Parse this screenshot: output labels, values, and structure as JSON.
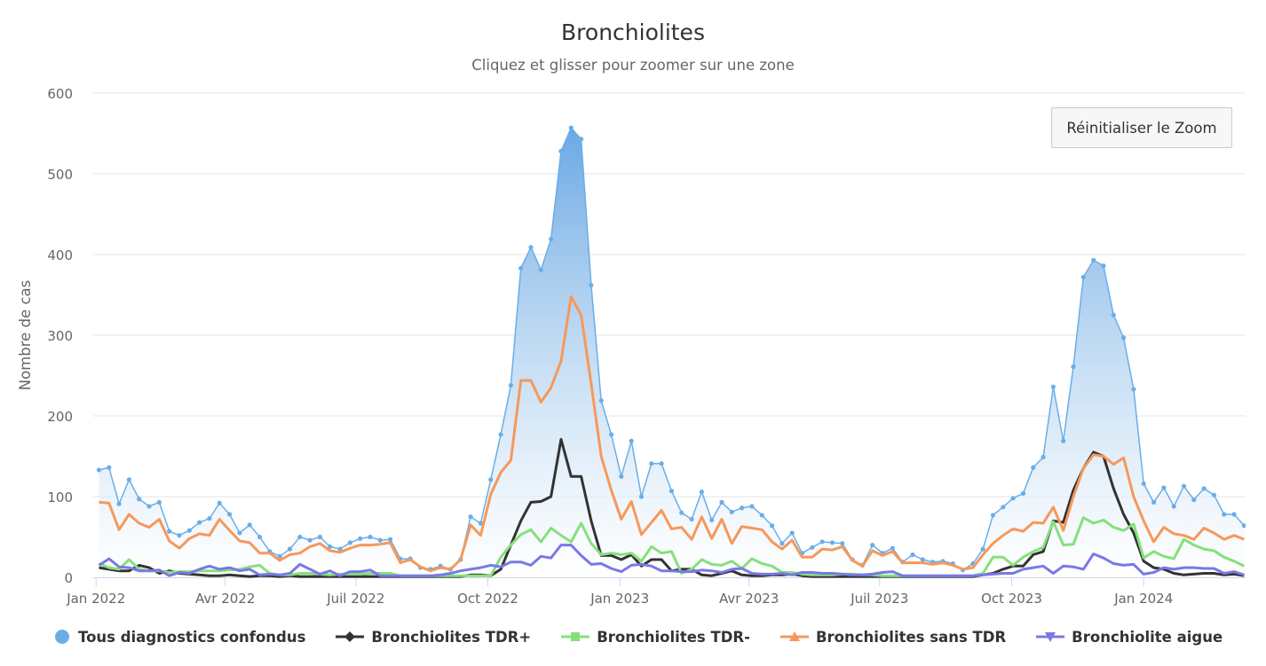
{
  "chart_data": {
    "type": "line",
    "title": "Bronchiolites",
    "subtitle": "Cliquez et glisser pour zoomer sur une zone",
    "ylabel": "Nombre de cas",
    "xlabel": "",
    "ylim": [
      0,
      600
    ],
    "yticks": [
      0,
      100,
      200,
      300,
      400,
      500,
      600
    ],
    "xlim": [
      "2021-12-30",
      "2024-03-12"
    ],
    "xticks": [
      {
        "date": "2022-01-01",
        "label": "Jan 2022"
      },
      {
        "date": "2022-04-01",
        "label": "Avr 2022"
      },
      {
        "date": "2022-07-01",
        "label": "Juil 2022"
      },
      {
        "date": "2022-10-01",
        "label": "Oct 2022"
      },
      {
        "date": "2023-01-01",
        "label": "Jan 2023"
      },
      {
        "date": "2023-04-01",
        "label": "Avr 2023"
      },
      {
        "date": "2023-07-01",
        "label": "Juil 2023"
      },
      {
        "date": "2023-10-01",
        "label": "Oct 2023"
      },
      {
        "date": "2024-01-01",
        "label": "Jan 2024"
      }
    ],
    "grid": true,
    "legend_position": "bottom",
    "x": [
      "2022-01-03",
      "2022-01-10",
      "2022-01-17",
      "2022-01-24",
      "2022-01-31",
      "2022-02-07",
      "2022-02-14",
      "2022-02-21",
      "2022-02-28",
      "2022-03-07",
      "2022-03-14",
      "2022-03-21",
      "2022-03-28",
      "2022-04-04",
      "2022-04-11",
      "2022-04-18",
      "2022-04-25",
      "2022-05-02",
      "2022-05-09",
      "2022-05-16",
      "2022-05-23",
      "2022-05-30",
      "2022-06-06",
      "2022-06-13",
      "2022-06-20",
      "2022-06-27",
      "2022-07-04",
      "2022-07-11",
      "2022-07-18",
      "2022-07-25",
      "2022-08-01",
      "2022-08-08",
      "2022-08-15",
      "2022-08-22",
      "2022-08-29",
      "2022-09-05",
      "2022-09-12",
      "2022-09-19",
      "2022-09-26",
      "2022-10-03",
      "2022-10-10",
      "2022-10-17",
      "2022-10-24",
      "2022-10-31",
      "2022-11-07",
      "2022-11-14",
      "2022-11-21",
      "2022-11-28",
      "2022-12-05",
      "2022-12-12",
      "2022-12-19",
      "2022-12-26",
      "2023-01-02",
      "2023-01-09",
      "2023-01-16",
      "2023-01-23",
      "2023-01-30",
      "2023-02-06",
      "2023-02-13",
      "2023-02-20",
      "2023-02-27",
      "2023-03-06",
      "2023-03-13",
      "2023-03-20",
      "2023-03-27",
      "2023-04-03",
      "2023-04-10",
      "2023-04-17",
      "2023-04-24",
      "2023-05-01",
      "2023-05-08",
      "2023-05-15",
      "2023-05-22",
      "2023-05-29",
      "2023-06-05",
      "2023-06-12",
      "2023-06-19",
      "2023-06-26",
      "2023-07-03",
      "2023-07-10",
      "2023-07-17",
      "2023-07-24",
      "2023-07-31",
      "2023-08-07",
      "2023-08-14",
      "2023-08-21",
      "2023-08-28",
      "2023-09-04",
      "2023-09-11",
      "2023-09-18",
      "2023-09-25",
      "2023-10-02",
      "2023-10-09",
      "2023-10-16",
      "2023-10-23",
      "2023-10-30",
      "2023-11-06",
      "2023-11-13",
      "2023-11-20",
      "2023-11-27",
      "2023-12-04",
      "2023-12-11",
      "2023-12-18",
      "2023-12-25",
      "2024-01-01",
      "2024-01-08",
      "2024-01-15",
      "2024-01-22",
      "2024-01-29",
      "2024-02-05",
      "2024-02-12",
      "2024-02-19",
      "2024-02-26",
      "2024-03-04",
      "2024-03-11"
    ],
    "series": [
      {
        "name": "Tous diagnostics confondus",
        "color": "#6aaee8",
        "style": "area",
        "marker": "circle",
        "values": [
          133,
          136,
          91,
          121,
          97,
          88,
          93,
          57,
          52,
          58,
          68,
          73,
          92,
          78,
          55,
          65,
          50,
          32,
          26,
          35,
          50,
          46,
          50,
          38,
          35,
          43,
          48,
          50,
          46,
          47,
          23,
          23,
          12,
          10,
          14,
          10,
          22,
          75,
          67,
          121,
          177,
          238,
          383,
          409,
          381,
          419,
          528,
          557,
          543,
          362,
          219,
          177,
          125,
          169,
          100,
          141,
          141,
          107,
          80,
          72,
          106,
          71,
          93,
          81,
          86,
          88,
          77,
          64,
          42,
          55,
          30,
          37,
          44,
          43,
          42,
          22,
          15,
          40,
          30,
          36,
          19,
          28,
          22,
          19,
          20,
          17,
          9,
          17,
          35,
          77,
          87,
          98,
          104,
          136,
          149,
          236,
          169,
          261,
          372,
          393,
          386,
          325,
          297,
          233,
          116,
          93,
          111,
          88,
          113,
          96,
          110,
          102,
          78,
          78,
          64
        ]
      },
      {
        "name": "Bronchiolites TDR+",
        "color": "#333333",
        "style": "line",
        "marker": "diamond",
        "values": [
          12,
          10,
          8,
          8,
          15,
          12,
          5,
          8,
          5,
          4,
          3,
          2,
          2,
          3,
          2,
          1,
          2,
          2,
          1,
          2,
          1,
          1,
          1,
          1,
          1,
          1,
          1,
          1,
          1,
          1,
          1,
          1,
          1,
          1,
          1,
          1,
          1,
          3,
          3,
          2,
          10,
          40,
          70,
          93,
          94,
          100,
          171,
          125,
          125,
          70,
          27,
          27,
          22,
          28,
          14,
          22,
          22,
          8,
          10,
          10,
          3,
          2,
          5,
          8,
          3,
          2,
          2,
          3,
          3,
          4,
          2,
          1,
          1,
          1,
          1,
          1,
          1,
          1,
          1,
          1,
          1,
          1,
          1,
          1,
          1,
          1,
          1,
          1,
          3,
          5,
          10,
          14,
          14,
          28,
          32,
          70,
          68,
          108,
          135,
          155,
          150,
          110,
          78,
          55,
          20,
          12,
          10,
          5,
          3,
          4,
          5,
          5,
          3,
          4,
          2
        ]
      },
      {
        "name": "Bronchiolites TDR-",
        "color": "#85e07c",
        "style": "line",
        "marker": "square",
        "values": [
          17,
          12,
          10,
          22,
          10,
          8,
          8,
          6,
          7,
          7,
          8,
          8,
          8,
          9,
          10,
          13,
          15,
          5,
          3,
          3,
          5,
          5,
          4,
          3,
          4,
          4,
          4,
          5,
          5,
          5,
          2,
          2,
          2,
          2,
          2,
          2,
          2,
          2,
          2,
          2,
          25,
          40,
          53,
          59,
          44,
          61,
          52,
          44,
          67,
          42,
          28,
          30,
          28,
          30,
          20,
          38,
          30,
          32,
          5,
          10,
          22,
          16,
          15,
          20,
          11,
          23,
          17,
          14,
          6,
          6,
          4,
          3,
          3,
          3,
          4,
          4,
          3,
          3,
          2,
          2,
          2,
          2,
          2,
          2,
          2,
          2,
          2,
          2,
          5,
          25,
          25,
          15,
          25,
          32,
          37,
          69,
          40,
          41,
          74,
          67,
          71,
          62,
          58,
          66,
          24,
          32,
          26,
          23,
          47,
          40,
          35,
          33,
          25,
          20,
          14
        ]
      },
      {
        "name": "Bronchiolites sans TDR",
        "color": "#f7985a",
        "style": "line",
        "marker": "triangle",
        "values": [
          93,
          92,
          59,
          78,
          67,
          62,
          72,
          45,
          36,
          48,
          54,
          52,
          72,
          58,
          45,
          43,
          30,
          30,
          21,
          28,
          30,
          38,
          42,
          33,
          31,
          36,
          40,
          40,
          41,
          43,
          18,
          22,
          13,
          8,
          12,
          10,
          22,
          65,
          52,
          103,
          130,
          145,
          244,
          244,
          217,
          235,
          268,
          348,
          325,
          240,
          150,
          108,
          72,
          94,
          53,
          68,
          83,
          60,
          62,
          47,
          75,
          48,
          72,
          42,
          63,
          61,
          59,
          44,
          35,
          46,
          25,
          25,
          35,
          34,
          38,
          21,
          14,
          33,
          27,
          32,
          18,
          18,
          18,
          16,
          18,
          15,
          10,
          12,
          28,
          42,
          52,
          60,
          57,
          68,
          67,
          87,
          58,
          100,
          135,
          152,
          150,
          140,
          148,
          100,
          70,
          44,
          62,
          54,
          52,
          47,
          61,
          55,
          47,
          52,
          47
        ]
      },
      {
        "name": "Bronchiolite aigue",
        "color": "#7a78e6",
        "style": "line",
        "marker": "triangle-down",
        "values": [
          15,
          23,
          13,
          12,
          8,
          8,
          9,
          2,
          6,
          5,
          10,
          14,
          10,
          12,
          8,
          10,
          3,
          4,
          3,
          5,
          16,
          10,
          4,
          8,
          2,
          7,
          7,
          9,
          2,
          2,
          2,
          2,
          2,
          2,
          3,
          5,
          8,
          10,
          12,
          15,
          13,
          19,
          19,
          15,
          26,
          24,
          40,
          40,
          27,
          16,
          17,
          11,
          7,
          15,
          16,
          14,
          8,
          8,
          7,
          7,
          9,
          8,
          6,
          10,
          11,
          5,
          4,
          4,
          5,
          3,
          6,
          6,
          5,
          5,
          4,
          3,
          3,
          4,
          6,
          7,
          2,
          2,
          2,
          2,
          2,
          2,
          2,
          2,
          3,
          4,
          5,
          5,
          10,
          12,
          14,
          5,
          14,
          13,
          10,
          29,
          24,
          17,
          15,
          16,
          4,
          6,
          12,
          10,
          12,
          12,
          11,
          11,
          5,
          7,
          3
        ]
      }
    ]
  },
  "controls": {
    "reset_zoom": "Réinitialiser le Zoom"
  }
}
